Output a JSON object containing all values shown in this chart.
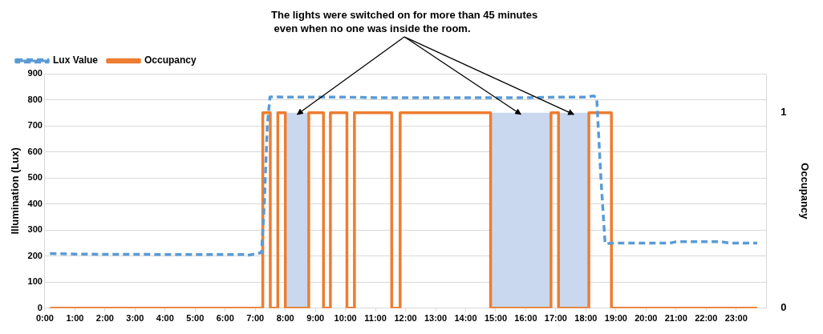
{
  "chart_data": {
    "type": "line",
    "annotations": [
      {
        "text": "The lights were switched on for more than 45 minutes\n even when no one was inside the room.",
        "x": 8.4,
        "y": 750
      }
    ],
    "ylabel": "Illumination (Lux)",
    "y2label": "Occupancy",
    "xlim": [
      0,
      24
    ],
    "xticks": [
      {
        "value": 0,
        "label": "0:00"
      },
      {
        "value": 1,
        "label": "1:00"
      },
      {
        "value": 2,
        "label": "2:00"
      },
      {
        "value": 3,
        "label": "3:00"
      },
      {
        "value": 4,
        "label": "4:00"
      },
      {
        "value": 5,
        "label": "5:00"
      },
      {
        "value": 6,
        "label": "6:00"
      },
      {
        "value": 7,
        "label": "7:00"
      },
      {
        "value": 8,
        "label": "8:00"
      },
      {
        "value": 9,
        "label": "9:00"
      },
      {
        "value": 10,
        "label": "10:00"
      },
      {
        "value": 11,
        "label": "11:00"
      },
      {
        "value": 12,
        "label": "12:00"
      },
      {
        "value": 13,
        "label": "13:00"
      },
      {
        "value": 14,
        "label": "14:00"
      },
      {
        "value": 15,
        "label": "15:00"
      },
      {
        "value": 16,
        "label": "16:00"
      },
      {
        "value": 17,
        "label": "17:00"
      },
      {
        "value": 18,
        "label": "18:00"
      },
      {
        "value": 19,
        "label": "19:00"
      },
      {
        "value": 20,
        "label": "20:00"
      },
      {
        "value": 21,
        "label": "21:00"
      },
      {
        "value": 22,
        "label": "22:00"
      },
      {
        "value": 23,
        "label": "23:00"
      }
    ],
    "ylim": [
      0,
      900
    ],
    "yticks": [
      0,
      100,
      200,
      300,
      400,
      500,
      600,
      700,
      800,
      900
    ],
    "y2lim": [
      0,
      1.2
    ],
    "y2ticks": [
      0,
      1
    ],
    "grid": "y",
    "legend": "top left",
    "marker": "none",
    "bands": [
      {
        "axis": "x",
        "from": 8.0,
        "to": 8.78,
        "color": "#c9d8ee"
      },
      {
        "axis": "x",
        "from": 14.83,
        "to": 16.84,
        "color": "#c9d8ee"
      },
      {
        "axis": "x",
        "from": 17.09,
        "to": 18.1,
        "color": "#c9d8ee"
      }
    ],
    "series": [
      {
        "name": "Lux Value",
        "type": "line",
        "color": "#5b9bd5",
        "line_style": "dashed",
        "x": [
          0.17,
          1,
          2,
          3,
          4,
          5,
          6,
          6.7,
          6.75,
          7.15,
          7.21,
          7.3,
          7.4,
          7.49,
          8,
          9,
          10,
          11,
          12,
          13,
          14,
          15,
          16,
          17,
          18,
          18.25,
          18.36,
          18.5,
          18.64,
          19,
          20,
          20.8,
          21,
          22,
          22.5,
          22.8,
          23.7
        ],
        "values": [
          210,
          208,
          207,
          207,
          206,
          206,
          206,
          206,
          203,
          212,
          212,
          400,
          700,
          811,
          810,
          810,
          810,
          808,
          808,
          808,
          808,
          808,
          808,
          810,
          810,
          815,
          808,
          500,
          248,
          250,
          250,
          250,
          255,
          255,
          255,
          250,
          250
        ]
      },
      {
        "name": "Occupancy",
        "type": "step",
        "axis": "y2",
        "color": "#ed7d31",
        "line_style": "solid",
        "x": [
          0.17,
          7.25,
          7.5,
          7.75,
          8.0,
          8.78,
          9.27,
          9.5,
          10.05,
          10.3,
          11.54,
          11.82,
          14.83,
          16.84,
          17.09,
          18.1,
          18.85,
          23.7
        ],
        "values": [
          0,
          1,
          0,
          1,
          0,
          1,
          0,
          1,
          0,
          1,
          0,
          1,
          0,
          1,
          0,
          1,
          0,
          0
        ]
      }
    ]
  }
}
